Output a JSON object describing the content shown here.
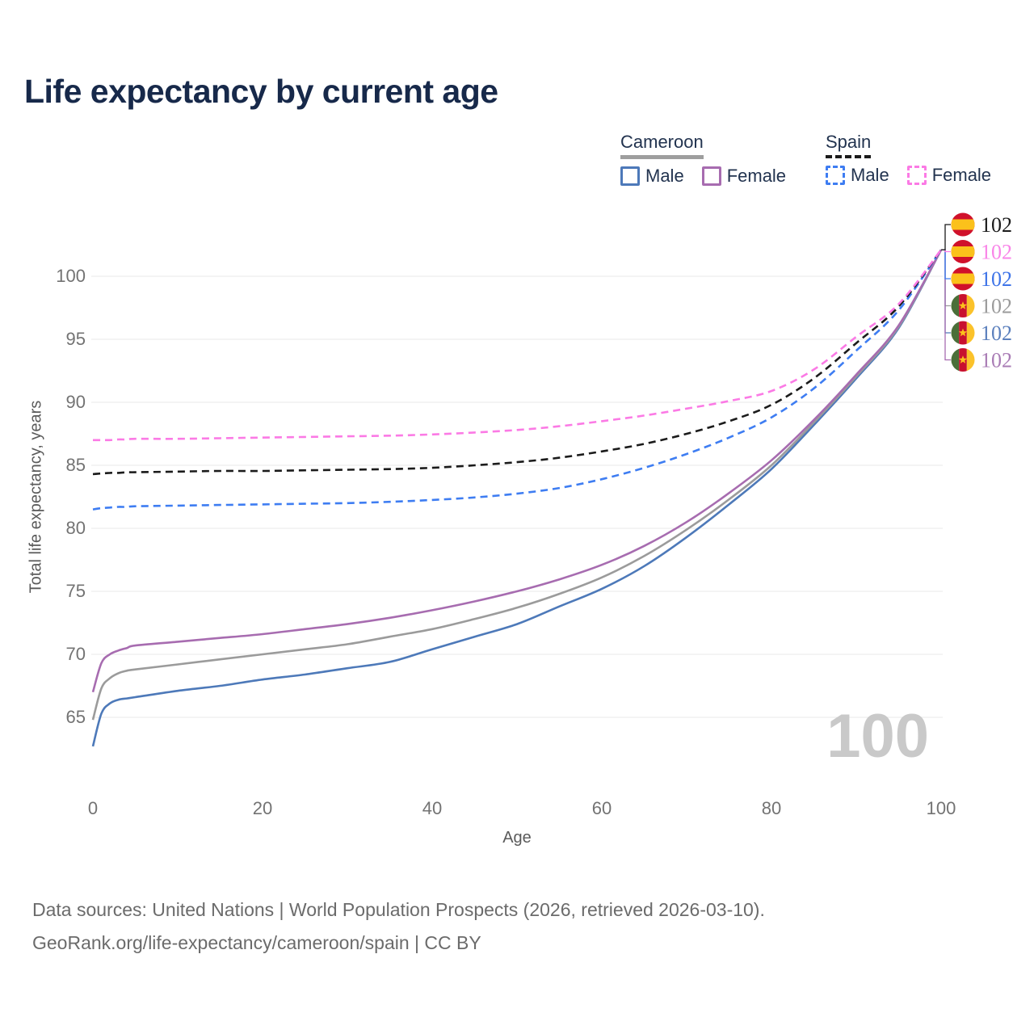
{
  "title": "Life expectancy by current age",
  "watermark": "100",
  "legend": {
    "groups": [
      {
        "name": "Cameroon",
        "line_style": "solid",
        "underline_color": "#9e9e9e",
        "items": [
          {
            "label": "Male",
            "color": "#4d79b9"
          },
          {
            "label": "Female",
            "color": "#a76cb0"
          }
        ]
      },
      {
        "name": "Spain",
        "line_style": "dashed",
        "underline_color": "#1b1b1b",
        "items": [
          {
            "label": "Male",
            "color": "#3e7df2"
          },
          {
            "label": "Female",
            "color": "#fb7ae5"
          }
        ]
      }
    ]
  },
  "chart_data": {
    "type": "line",
    "title": "Life expectancy by current age",
    "xlabel": "Age",
    "ylabel": "Total life expectancy, years",
    "xlim": [
      0,
      100
    ],
    "ylim": [
      62,
      103
    ],
    "xticks": [
      0,
      20,
      40,
      60,
      80,
      100
    ],
    "yticks": [
      65,
      70,
      75,
      80,
      85,
      90,
      95,
      100
    ],
    "grid": "horizontal",
    "grid_color": "#e9e9e9",
    "legend_position": "top-right",
    "x": [
      0,
      1,
      2,
      3,
      4,
      5,
      10,
      15,
      20,
      25,
      30,
      35,
      40,
      45,
      50,
      55,
      60,
      65,
      70,
      75,
      80,
      85,
      90,
      95,
      100
    ],
    "series": [
      {
        "name": "Cameroon Male",
        "country": "Cameroon",
        "sex": "Male",
        "color": "#4d79b9",
        "dash": false,
        "values": [
          62.7,
          65.3,
          66.1,
          66.4,
          66.5,
          66.6,
          67.1,
          67.5,
          68.0,
          68.4,
          68.9,
          69.4,
          70.4,
          71.4,
          72.4,
          73.8,
          75.2,
          77.0,
          79.3,
          81.9,
          84.7,
          88.2,
          91.9,
          95.9,
          102.1
        ]
      },
      {
        "name": "Cameroon Both sexes",
        "country": "Cameroon",
        "sex": "Both",
        "color": "#9b9b9b",
        "dash": false,
        "values": [
          64.8,
          67.3,
          68.1,
          68.5,
          68.7,
          68.8,
          69.2,
          69.6,
          70.0,
          70.4,
          70.8,
          71.4,
          72.0,
          72.8,
          73.7,
          74.8,
          76.1,
          77.8,
          79.9,
          82.3,
          85.0,
          88.4,
          92.05,
          96.0,
          102.1
        ]
      },
      {
        "name": "Cameroon Female",
        "country": "Cameroon",
        "sex": "Female",
        "color": "#a76cb0",
        "dash": false,
        "values": [
          67.0,
          69.3,
          70.0,
          70.3,
          70.5,
          70.7,
          71.0,
          71.3,
          71.6,
          72.0,
          72.4,
          72.9,
          73.5,
          74.2,
          75.0,
          75.95,
          77.1,
          78.6,
          80.5,
          82.8,
          85.4,
          88.6,
          92.2,
          96.1,
          102.1
        ]
      },
      {
        "name": "Spain Male",
        "country": "Spain",
        "sex": "Male",
        "color": "#3e7df2",
        "dash": true,
        "values": [
          81.5,
          81.6,
          81.65,
          81.7,
          81.7,
          81.75,
          81.8,
          81.85,
          81.9,
          81.95,
          82.0,
          82.1,
          82.25,
          82.45,
          82.75,
          83.2,
          83.9,
          84.8,
          85.9,
          87.2,
          88.8,
          91.1,
          94.1,
          97.3,
          102.1
        ]
      },
      {
        "name": "Spain Both sexes",
        "country": "Spain",
        "sex": "Both",
        "color": "#1b1b1b",
        "dash": true,
        "values": [
          84.3,
          84.35,
          84.4,
          84.4,
          84.45,
          84.45,
          84.5,
          84.55,
          84.55,
          84.6,
          84.65,
          84.7,
          84.8,
          85.0,
          85.25,
          85.6,
          86.1,
          86.7,
          87.5,
          88.5,
          89.8,
          91.9,
          94.7,
          97.6,
          102.1
        ]
      },
      {
        "name": "Spain Female",
        "country": "Spain",
        "sex": "Female",
        "color": "#fb7ae5",
        "dash": true,
        "values": [
          87.0,
          87.0,
          87.0,
          87.05,
          87.05,
          87.1,
          87.1,
          87.15,
          87.2,
          87.25,
          87.3,
          87.35,
          87.45,
          87.6,
          87.8,
          88.1,
          88.5,
          88.95,
          89.5,
          90.1,
          90.9,
          92.6,
          95.2,
          97.8,
          102.1
        ]
      }
    ],
    "end_labels": [
      {
        "flag": "spain",
        "series": "Spain Both sexes",
        "value": "102",
        "text_color": "#1b1b1b",
        "line_color": "#1b1b1b"
      },
      {
        "flag": "spain",
        "series": "Spain Female",
        "value": "102",
        "text_color": "#f985e8",
        "line_color": "#fb7ae5"
      },
      {
        "flag": "spain",
        "series": "Spain Male",
        "value": "102",
        "text_color": "#3e74e8",
        "line_color": "#3e7df2"
      },
      {
        "flag": "cameroon",
        "series": "Cameroon Both sexes",
        "value": "102",
        "text_color": "#9b9b9b",
        "line_color": "#9b9b9b"
      },
      {
        "flag": "cameroon",
        "series": "Cameroon Male",
        "value": "102",
        "text_color": "#5c80bd",
        "line_color": "#4d79b9"
      },
      {
        "flag": "cameroon",
        "series": "Cameroon Female",
        "value": "102",
        "text_color": "#a97cb5",
        "line_color": "#a76cb0"
      }
    ],
    "flags": {
      "spain": {
        "red": "#d0112b",
        "yellow": "#fbc11b"
      },
      "cameroon": {
        "green": "#4a6f39",
        "red": "#c8102e",
        "yellow": "#fbc22a",
        "star": "#fbc11b"
      }
    }
  },
  "footer": {
    "line1": "Data sources: United Nations | World Population Prospects (2026, retrieved 2026-03-10).",
    "line2": "GeoRank.org/life-expectancy/cameroon/spain | CC BY"
  }
}
